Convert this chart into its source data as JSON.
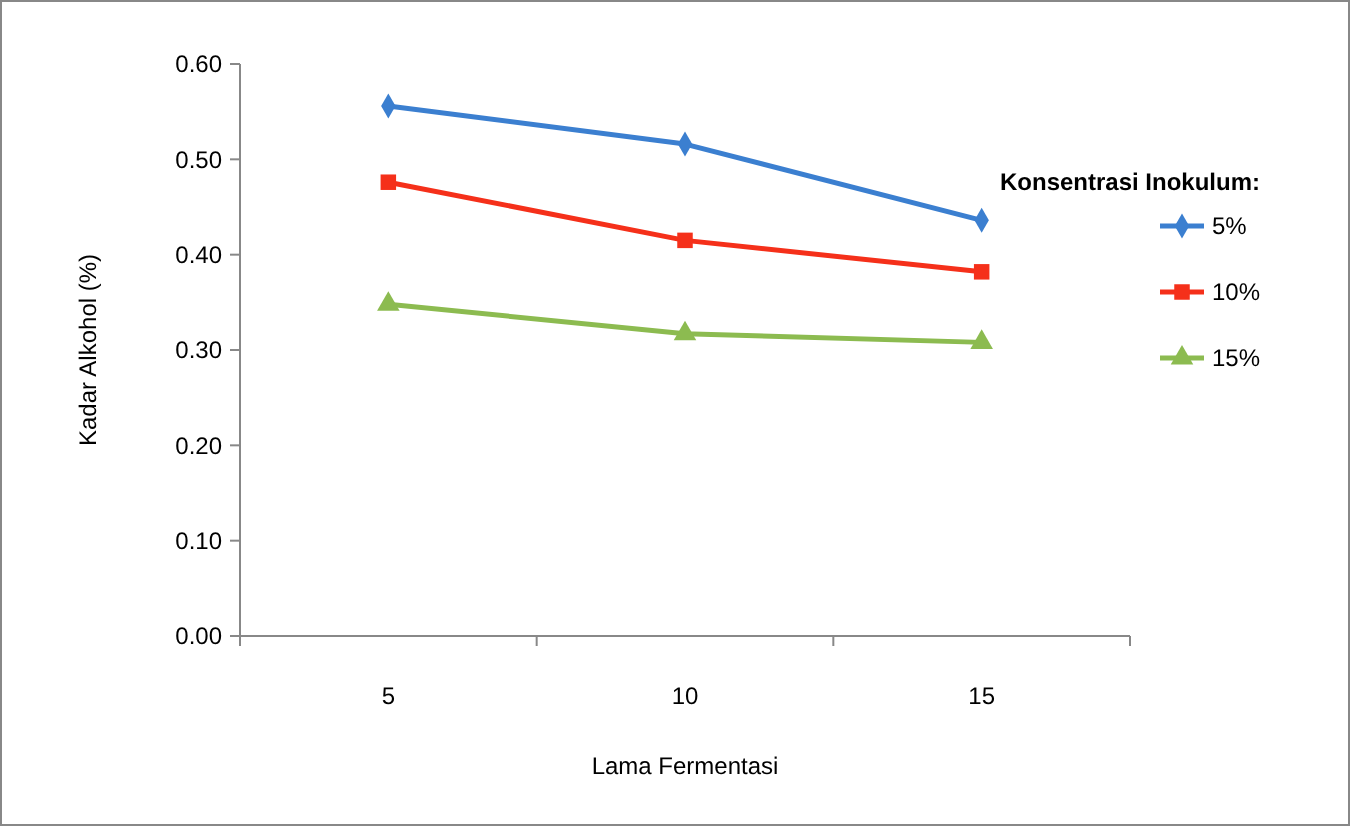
{
  "chart_data": {
    "type": "line",
    "xlabel": "Lama Fermentasi",
    "ylabel": "Kadar Alkohol (%)",
    "legend_title": "Konsentrasi Inokulum:",
    "legend": "right",
    "grid": false,
    "categories": [
      "5",
      "10",
      "15"
    ],
    "ylim": [
      0,
      0.6
    ],
    "yticks": [
      {
        "value": 0,
        "label": "0.00"
      },
      {
        "value": 0.1,
        "label": "0.10"
      },
      {
        "value": 0.2,
        "label": "0.20"
      },
      {
        "value": 0.3,
        "label": "0.30"
      },
      {
        "value": 0.4,
        "label": "0.40"
      },
      {
        "value": 0.5,
        "label": "0.50"
      },
      {
        "value": 0.6,
        "label": "0.60"
      }
    ],
    "series": [
      {
        "name": "5%",
        "color": "#3b7fd0",
        "marker": "diamond",
        "values": [
          0.556,
          0.516,
          0.436
        ]
      },
      {
        "name": "10%",
        "color": "#f5301a",
        "marker": "square",
        "values": [
          0.476,
          0.415,
          0.382
        ]
      },
      {
        "name": "15%",
        "color": "#8cbb50",
        "marker": "triangle",
        "values": [
          0.348,
          0.317,
          0.308
        ]
      }
    ]
  }
}
